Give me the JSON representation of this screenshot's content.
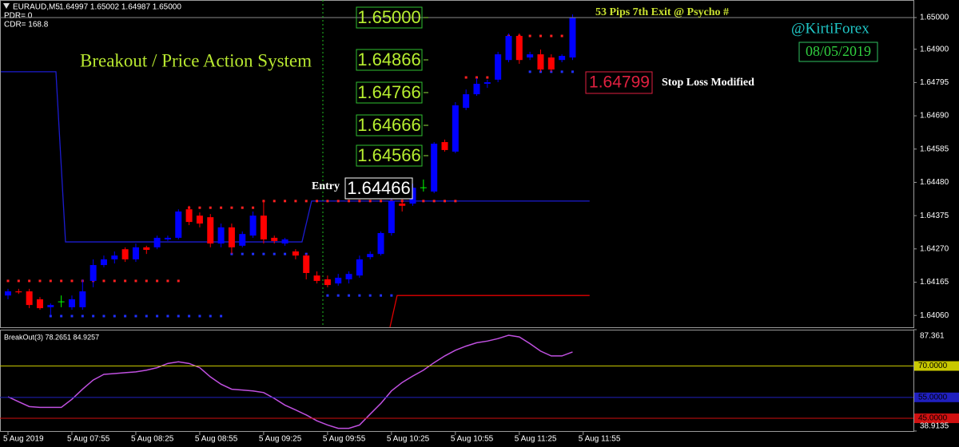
{
  "header": {
    "symbol": "EURAUD,M5",
    "quote": "1.64997 1.65002 1.64987 1.65000",
    "pdr": "PDR= 0",
    "cdr": "CDR= 168.8"
  },
  "annotations": {
    "system": "Breakout / Price Action System",
    "exit": "53 Pips 7th Exit @ Psycho #",
    "handle": "@KirtiForex",
    "date": "08/05/2019",
    "entry_label": "Entry",
    "entry_price": "1.64466",
    "targets": [
      "1.65000",
      "1.64866",
      "1.64766",
      "1.64666",
      "1.64566"
    ],
    "stop_price": "1.64799",
    "stop_label": "Stop Loss Modified"
  },
  "chart_data": [
    {
      "type": "candlestick",
      "colors": {
        "up": "#0000ff",
        "down": "#ff0000",
        "doji": "#00ff00"
      },
      "open": [
        1.64123,
        1.64136,
        1.64136,
        1.64111,
        1.64086,
        1.64103,
        1.64086,
        1.64086,
        1.64169,
        1.64219,
        1.64237,
        1.64269,
        1.64237,
        1.64275,
        1.64275,
        1.643,
        1.64305,
        1.64395,
        1.64375,
        1.6437,
        1.64287,
        1.64338,
        1.6428,
        1.64312,
        1.64375,
        1.64305,
        1.64287,
        1.64262,
        1.64249,
        1.64186,
        1.64174,
        1.64161,
        1.64174,
        1.64186,
        1.64244,
        1.64254,
        1.6432,
        1.64413,
        1.64413,
        1.64463,
        1.64451,
        1.64607,
        1.64577,
        1.64715,
        1.64758,
        1.64791,
        1.64804,
        1.64866,
        1.64942,
        1.64874,
        1.64884,
        1.64874,
        1.64866,
        1.64874
      ],
      "high": [
        1.64144,
        1.64144,
        1.64144,
        1.64118,
        1.64098,
        1.64123,
        1.64123,
        1.64174,
        1.64237,
        1.64249,
        1.64262,
        1.64275,
        1.64287,
        1.6428,
        1.64312,
        1.64312,
        1.64395,
        1.64406,
        1.64385,
        1.6438,
        1.6435,
        1.6435,
        1.64325,
        1.64388,
        1.64421,
        1.64312,
        1.64305,
        1.64269,
        1.64254,
        1.64199,
        1.64186,
        1.64191,
        1.64199,
        1.64249,
        1.64262,
        1.64325,
        1.64431,
        1.64426,
        1.64476,
        1.64489,
        1.64607,
        1.64615,
        1.64733,
        1.64773,
        1.64809,
        1.64804,
        1.64892,
        1.6495,
        1.6495,
        1.64892,
        1.64899,
        1.64884,
        1.64884,
        1.6501
      ],
      "low": [
        1.64111,
        1.64128,
        1.64083,
        1.64078,
        1.6406,
        1.64086,
        1.64078,
        1.64078,
        1.64149,
        1.64212,
        1.64224,
        1.64229,
        1.64229,
        1.64254,
        1.64269,
        1.64295,
        1.643,
        1.64345,
        1.64338,
        1.64275,
        1.64275,
        1.64254,
        1.64275,
        1.64305,
        1.64287,
        1.64287,
        1.6428,
        1.64237,
        1.64174,
        1.64161,
        1.64149,
        1.64154,
        1.64161,
        1.64179,
        1.64237,
        1.64249,
        1.64312,
        1.64388,
        1.64406,
        1.64451,
        1.64446,
        1.64577,
        1.64572,
        1.64708,
        1.64753,
        1.64778,
        1.64796,
        1.64859,
        1.64854,
        1.64866,
        1.64829,
        1.64829,
        1.64859,
        1.64866
      ],
      "close": [
        1.64136,
        1.64133,
        1.64093,
        1.64083,
        1.64093,
        1.64103,
        1.64111,
        1.64136,
        1.64219,
        1.64237,
        1.64249,
        1.64237,
        1.64275,
        1.64267,
        1.64305,
        1.64305,
        1.64388,
        1.64355,
        1.6435,
        1.64287,
        1.64338,
        1.64275,
        1.64317,
        1.64375,
        1.643,
        1.64295,
        1.643,
        1.64249,
        1.64194,
        1.64169,
        1.64156,
        1.64179,
        1.64191,
        1.64237,
        1.64254,
        1.6432,
        1.64421,
        1.64406,
        1.64463,
        1.64463,
        1.64602,
        1.64582,
        1.64723,
        1.64758,
        1.64791,
        1.64796,
        1.64884,
        1.64942,
        1.64866,
        1.64884,
        1.64836,
        1.64836,
        1.64879,
        1.65
      ],
      "lines": [
        {
          "color": "#1c1cd0",
          "x": [
            -0.75,
            4.5,
            5.4,
            27.6,
            28.5,
            54.6
          ],
          "values": [
            1.64829,
            1.64829,
            1.64292,
            1.64292,
            1.64421,
            1.64421
          ]
        },
        {
          "color": "#e00000",
          "x": [
            35.86,
            36.53,
            54.6
          ],
          "values": [
            1.64023,
            1.64123,
            1.64123
          ]
        }
      ],
      "dots": [
        {
          "color": "#ff2020",
          "values": [
            1.64169,
            1.64169,
            1.64169,
            1.64169,
            1.64169,
            1.64169,
            1.64169,
            1.64169,
            1.64169,
            1.64169,
            1.64169,
            1.64169,
            1.64169,
            1.64169,
            1.64169,
            1.64169,
            1.64169,
            1.644,
            1.644,
            1.644,
            1.644,
            1.644,
            1.644,
            1.644,
            1.64421,
            1.64421,
            1.64421,
            1.64421,
            1.64421,
            1.64421,
            1.64421,
            1.64421,
            1.64421,
            1.64421,
            1.64421,
            1.64421,
            1.64421,
            1.64421,
            1.64421,
            1.64421,
            1.64421,
            1.64421,
            1.64421,
            1.64811,
            1.64811,
            1.64811,
            1.64811,
            1.64942,
            1.64942,
            1.64942,
            1.64942,
            1.64942,
            1.64942,
            1.64942
          ]
        },
        {
          "color": "#2030ff",
          "values": [
            null,
            null,
            null,
            null,
            1.64058,
            1.64058,
            1.64058,
            1.64058,
            1.64058,
            1.64058,
            1.64058,
            1.64058,
            1.64058,
            1.64058,
            1.64058,
            1.64058,
            1.64058,
            1.64058,
            1.64058,
            1.64058,
            1.64058,
            1.64254,
            1.64254,
            1.64254,
            1.64254,
            1.64254,
            1.64254,
            1.64254,
            1.64254,
            null,
            1.64123,
            1.64123,
            1.64123,
            1.64123,
            1.64123,
            1.64123,
            1.64123,
            null,
            null,
            null,
            null,
            null,
            null,
            null,
            null,
            null,
            null,
            null,
            null,
            1.64829,
            1.64829,
            1.64829,
            1.64829,
            1.64829
          ]
        }
      ],
      "xlim": [
        -0.75,
        85
      ],
      "xticks": [
        {
          "value": 0,
          "label": "5 Aug 2019"
        },
        {
          "value": 6,
          "label": "5 Aug 07:55"
        },
        {
          "value": 12,
          "label": "5 Aug 08:25"
        },
        {
          "value": 18,
          "label": "5 Aug 08:55"
        },
        {
          "value": 24,
          "label": "5 Aug 09:25"
        },
        {
          "value": 30,
          "label": "5 Aug 09:55"
        },
        {
          "value": 36,
          "label": "5 Aug 10:25"
        },
        {
          "value": 42,
          "label": "5 Aug 10:55"
        },
        {
          "value": 48,
          "label": "5 Aug 11:25"
        },
        {
          "value": 54,
          "label": "5 Aug 11:55"
        }
      ],
      "ylim": [
        1.640227,
        1.650554
      ],
      "yticks": [
        {
          "value": 1.65,
          "label": "1.65000"
        },
        {
          "value": 1.649,
          "label": "1.64900"
        },
        1.64795,
        {
          "value": 1.6469,
          "label": "1.64690"
        },
        1.64585,
        {
          "value": 1.6448,
          "label": "1.64480"
        },
        1.64375,
        {
          "value": 1.6427,
          "label": "1.64270"
        },
        1.64165,
        {
          "value": 1.6406,
          "label": "1.64060"
        }
      ]
    },
    {
      "type": "line",
      "title": "BreakOut(3) 78.2651 84.9257",
      "series": [
        {
          "color": "#c050e0",
          "values": [
            55.3,
            52.9,
            50.6,
            50.2,
            50.2,
            50.2,
            54.1,
            58.9,
            63.3,
            66.0,
            66.4,
            66.8,
            67.2,
            68.0,
            69.2,
            71.2,
            72.0,
            71.2,
            69.2,
            64.8,
            61.3,
            58.9,
            58.5,
            58.1,
            57.3,
            54.5,
            51.3,
            49.0,
            46.6,
            43.8,
            41.8,
            40.2,
            40.2,
            41.8,
            47.0,
            52.1,
            58.1,
            62.1,
            65.2,
            68.0,
            71.6,
            74.8,
            77.5,
            79.5,
            81.1,
            81.9,
            83.1,
            84.7,
            83.9,
            80.7,
            77.1,
            74.8,
            74.8,
            76.7
          ]
        }
      ],
      "xlim": [
        -0.75,
        85
      ],
      "ylim": [
        38.9135,
        87.361
      ],
      "yticks": [
        87.361,
        38.9135
      ],
      "levels": [
        {
          "value": 70,
          "label": "70.0000",
          "color": "#c8c800"
        },
        {
          "value": 55,
          "label": "55.0000",
          "color": "#2020c0"
        },
        {
          "value": 45,
          "label": "45.0000",
          "color": "#d01010"
        }
      ]
    }
  ]
}
